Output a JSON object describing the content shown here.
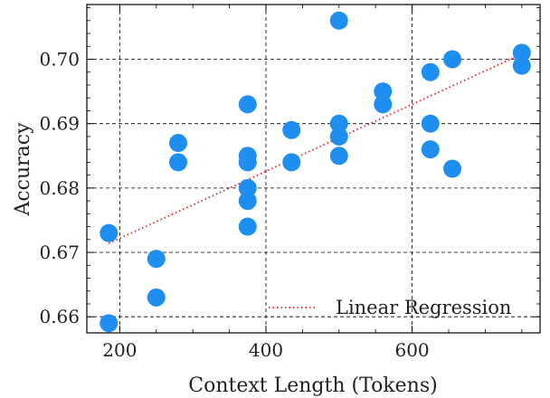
{
  "chart_data": {
    "type": "scatter",
    "xlabel": "Context Length (Tokens)",
    "ylabel": "Accuracy",
    "xlim": [
      155,
      775
    ],
    "ylim": [
      0.6575,
      0.7085
    ],
    "xticks": [
      200,
      400,
      600
    ],
    "xtick_labels": [
      "200",
      "400",
      "600"
    ],
    "yticks": [
      0.66,
      0.67,
      0.68,
      0.69,
      0.7
    ],
    "ytick_labels": [
      "0.66",
      "0.67",
      "0.68",
      "0.69",
      "0.70"
    ],
    "grid": true,
    "legend_position": "bottom-right",
    "point_color": "#1e8ff0",
    "series": [
      {
        "type": "scatter",
        "points": [
          {
            "x": 185,
            "y": 0.673
          },
          {
            "x": 185,
            "y": 0.659
          },
          {
            "x": 250,
            "y": 0.669
          },
          {
            "x": 250,
            "y": 0.663
          },
          {
            "x": 280,
            "y": 0.687
          },
          {
            "x": 280,
            "y": 0.684
          },
          {
            "x": 375,
            "y": 0.693
          },
          {
            "x": 375,
            "y": 0.685
          },
          {
            "x": 375,
            "y": 0.684
          },
          {
            "x": 375,
            "y": 0.68
          },
          {
            "x": 375,
            "y": 0.678
          },
          {
            "x": 375,
            "y": 0.674
          },
          {
            "x": 435,
            "y": 0.689
          },
          {
            "x": 435,
            "y": 0.684
          },
          {
            "x": 500,
            "y": 0.706
          },
          {
            "x": 500,
            "y": 0.69
          },
          {
            "x": 500,
            "y": 0.688
          },
          {
            "x": 500,
            "y": 0.685
          },
          {
            "x": 560,
            "y": 0.695
          },
          {
            "x": 560,
            "y": 0.693
          },
          {
            "x": 625,
            "y": 0.698
          },
          {
            "x": 625,
            "y": 0.69
          },
          {
            "x": 625,
            "y": 0.686
          },
          {
            "x": 655,
            "y": 0.7
          },
          {
            "x": 655,
            "y": 0.683
          },
          {
            "x": 750,
            "y": 0.701
          },
          {
            "x": 750,
            "y": 0.699
          }
        ]
      },
      {
        "type": "line",
        "name": "Linear Regression",
        "style": "dotted",
        "color": "#e8202a",
        "points": [
          {
            "x": 185,
            "y": 0.6714
          },
          {
            "x": 750,
            "y": 0.7008
          }
        ]
      }
    ]
  }
}
